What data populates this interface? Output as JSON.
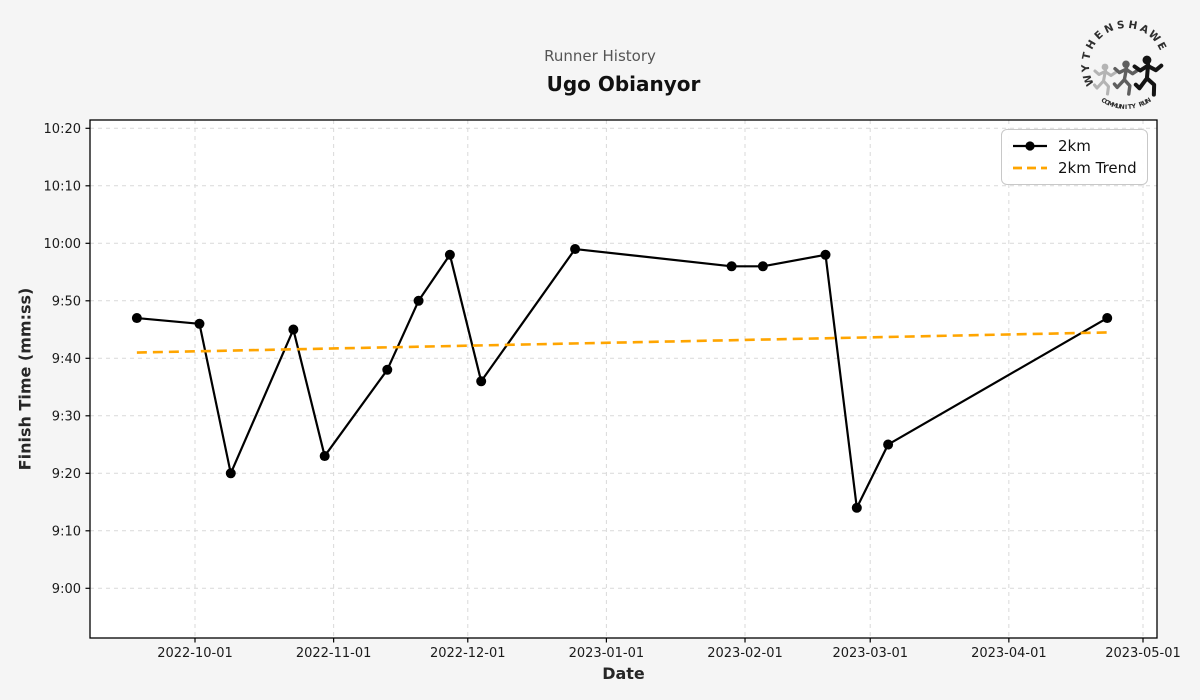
{
  "chart_data": {
    "type": "line",
    "title": "Ugo Obianyor",
    "subtitle": "Runner History",
    "xlabel": "Date",
    "ylabel": "Finish Time (mm:ss)",
    "grid": true,
    "legend_position": "upper right",
    "x_ticks": [
      "2022-10-01",
      "2022-11-01",
      "2022-12-01",
      "2023-01-01",
      "2023-02-01",
      "2023-03-01",
      "2023-04-01",
      "2023-05-01"
    ],
    "y_ticks": [
      "9:00",
      "9:10",
      "9:20",
      "9:30",
      "9:40",
      "9:50",
      "10:00",
      "10:10",
      "10:20"
    ],
    "x_domain": [
      "2022-09-08",
      "2023-05-04"
    ],
    "y_domain_mmss": [
      "8:51",
      "10:21"
    ],
    "series": [
      {
        "name": "2km",
        "color": "#000000",
        "marker": "circle",
        "points": [
          {
            "date": "2022-09-18",
            "time": "9:47"
          },
          {
            "date": "2022-10-02",
            "time": "9:46"
          },
          {
            "date": "2022-10-09",
            "time": "9:20"
          },
          {
            "date": "2022-10-23",
            "time": "9:45"
          },
          {
            "date": "2022-10-30",
            "time": "9:23"
          },
          {
            "date": "2022-11-13",
            "time": "9:38"
          },
          {
            "date": "2022-11-20",
            "time": "9:50"
          },
          {
            "date": "2022-11-27",
            "time": "9:58"
          },
          {
            "date": "2022-12-04",
            "time": "9:36"
          },
          {
            "date": "2022-12-25",
            "time": "9:59"
          },
          {
            "date": "2023-01-29",
            "time": "9:56"
          },
          {
            "date": "2023-02-05",
            "time": "9:56"
          },
          {
            "date": "2023-02-19",
            "time": "9:58"
          },
          {
            "date": "2023-02-26",
            "time": "9:14"
          },
          {
            "date": "2023-03-05",
            "time": "9:25"
          },
          {
            "date": "2023-04-23",
            "time": "9:47"
          }
        ]
      }
    ],
    "trend": {
      "name": "2km Trend",
      "color": "#FFA500",
      "style": "dashed",
      "start": {
        "date": "2022-09-18",
        "seconds": 581
      },
      "end": {
        "date": "2023-04-23",
        "seconds": 584.5
      }
    }
  },
  "logo": {
    "arc_top": "WYTHENSHAWE",
    "arc_bottom": "COMMUNITY RUN"
  },
  "colors": {
    "background": "#f5f5f5",
    "plot_background": "#ffffff",
    "grid": "#d9d9d9",
    "spine": "#000000",
    "tick_label": "#1a1a1a",
    "series": "#000000",
    "trend": "#FFA500",
    "subtitle_text": "#555555",
    "title_text": "#111111",
    "logo_text": "#2e2e2e",
    "logo_runner_left": "#b4b4b4",
    "logo_runner_mid": "#5f5f5f",
    "logo_runner_right": "#141414"
  }
}
